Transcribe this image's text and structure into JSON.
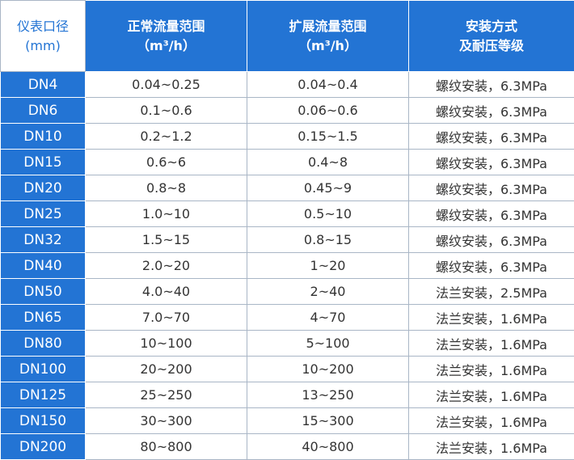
{
  "table": {
    "header": [
      [
        "仪表口径",
        "(mm)"
      ],
      [
        "正常流量范围",
        "（m³/h）"
      ],
      [
        "扩展流量范围",
        "（m³/h）"
      ],
      [
        "安装方式",
        "及耐压等级"
      ]
    ],
    "rows": [
      [
        "DN4",
        "0.04~0.25",
        "0.04~0.4",
        "螺纹安装，6.3MPa"
      ],
      [
        "DN6",
        "0.1~0.6",
        "0.06~0.6",
        "螺纹安装，6.3MPa"
      ],
      [
        "DN10",
        "0.2~1.2",
        "0.15~1.5",
        "螺纹安装，6.3MPa"
      ],
      [
        "DN15",
        "0.6~6",
        "0.4~8",
        "螺纹安装，6.3MPa"
      ],
      [
        "DN20",
        "0.8~8",
        "0.45~9",
        "螺纹安装，6.3MPa"
      ],
      [
        "DN25",
        "1.0~10",
        "0.5~10",
        "螺纹安装，6.3MPa"
      ],
      [
        "DN32",
        "1.5~15",
        "0.8~15",
        "螺纹安装，6.3MPa"
      ],
      [
        "DN40",
        "2.0~20",
        "1~20",
        "螺纹安装，6.3MPa"
      ],
      [
        "DN50",
        "4.0~40",
        "2~40",
        "法兰安装，2.5MPa"
      ],
      [
        "DN65",
        "7.0~70",
        "4~70",
        "法兰安装，1.6MPa"
      ],
      [
        "DN80",
        "10~100",
        "5~100",
        "法兰安装，1.6MPa"
      ],
      [
        "DN100",
        "20~200",
        "10~200",
        "法兰安装，1.6MPa"
      ],
      [
        "DN125",
        "25~250",
        "13~250",
        "法兰安装，1.6MPa"
      ],
      [
        "DN150",
        "30~300",
        "15~300",
        "法兰安装，1.6MPa"
      ],
      [
        "DN200",
        "80~800",
        "40~800",
        "法兰安装，1.6MPa"
      ]
    ]
  }
}
